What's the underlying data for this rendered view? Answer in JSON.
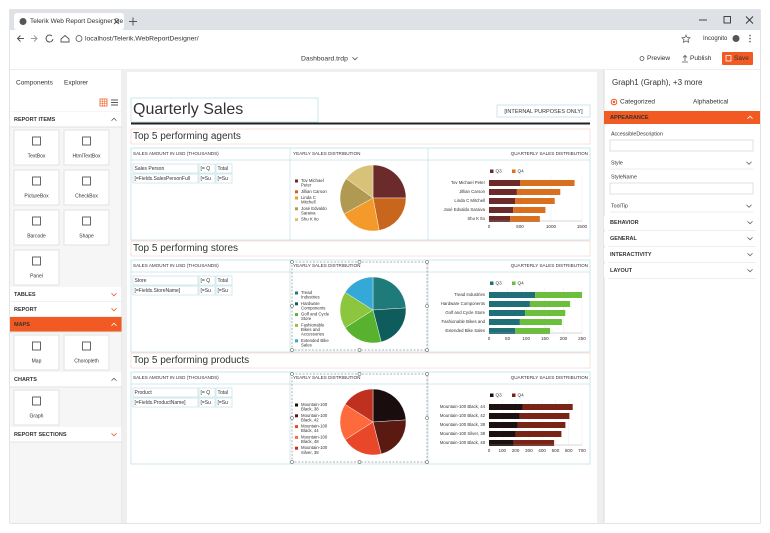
{
  "browser": {
    "tab_title": "Telerik Web Report Designer De",
    "url": "localhost/Telerik.WebReportDesigner/",
    "mode": "Incognito"
  },
  "toolbar": {
    "document": "Dashboard.trdp",
    "preview": "Preview",
    "publish": "Publish",
    "save": "Save"
  },
  "left_panel": {
    "tabs": [
      "Components",
      "Explorer"
    ],
    "groups": [
      {
        "title": "REPORT ITEMS",
        "items": [
          "TextBox",
          "HtmlTextBox",
          "PictureBox",
          "CheckBox",
          "Barcode",
          "Shape",
          "Panel"
        ]
      },
      {
        "title": "TABLES"
      },
      {
        "title": "REPORT"
      },
      {
        "title": "MAPS",
        "items": [
          "Map",
          "Choropleth"
        ]
      },
      {
        "title": "CHARTS",
        "items": [
          "Graph"
        ]
      },
      {
        "title": "REPORT SECTIONS"
      }
    ]
  },
  "report": {
    "title": "Quarterly Sales",
    "badge": "[INTERNAL PURPOSES ONLY]",
    "sections": [
      {
        "title": "Top 5 performing agents",
        "table_header": "SALES AMOUNT IN USD (THOUSANDS)",
        "pie_header": "YEARLY SALES DISTRIBUTION",
        "bar_header": "QUARTERLY SALES DISTRIBUTION",
        "columns": [
          "Sales Person",
          "[= Q",
          "Total"
        ],
        "row": [
          "[=Fields.SalesPersonFull",
          "[=Su",
          "[=Su"
        ],
        "pie": {
          "labels": [
            "Tov Michael Peter",
            "Jillian Carson",
            "Linda C Mitchell",
            "José Edvaldo Saraiva",
            "Shu K Ito"
          ],
          "values": [
            25,
            22,
            20,
            18,
            15
          ],
          "colors": [
            "#6b2b2b",
            "#c9661d",
            "#f39a2a",
            "#b09a52",
            "#d8c27a"
          ]
        },
        "bar": {
          "categories": [
            "Tov Michael Peter",
            "Jillian Carson",
            "Linda C Mitchell",
            "José Edvaldo Saraiva",
            "Shu K Ito"
          ],
          "series": [
            {
              "name": "Q3",
              "color": "#6b2b2b",
              "values": [
                500,
                450,
                420,
                390,
                340
              ]
            },
            {
              "name": "Q4",
              "color": "#d9701f",
              "values": [
                880,
                700,
                640,
                520,
                480
              ]
            }
          ],
          "xlim": [
            0,
            1500
          ],
          "xticks": [
            0,
            500,
            1000,
            1500
          ]
        }
      },
      {
        "title": "Top 5 performing stores",
        "table_header": "SALES AMOUNT IN USD (THOUSANDS)",
        "pie_header": "YEARLY SALES DISTRIBUTION",
        "bar_header": "QUARTERLY SALES DISTRIBUTION",
        "columns": [
          "Store",
          "[= Q",
          "Total"
        ],
        "row": [
          "[=Fields.StoreName]",
          "[=Su",
          "[=Su"
        ],
        "pie": {
          "labels": [
            "Tread Industries",
            "Hardware Components",
            "Golf and Cycle Store",
            "Fashionable Bikes and Accessories",
            "Extended Bike Sales"
          ],
          "values": [
            24,
            22,
            20,
            18,
            16
          ],
          "colors": [
            "#1f7a7a",
            "#0f5c5c",
            "#58b22f",
            "#8cc63f",
            "#34a8d6"
          ]
        },
        "bar": {
          "categories": [
            "Tread Industries",
            "Hardware Components",
            "Golf and Cycle Store",
            "Fashionable Bikes and",
            "Extended Bike Sales"
          ],
          "series": [
            {
              "name": "Q3",
              "color": "#1f6f78",
              "values": [
                124,
                110,
                97,
                83,
                70
              ]
            },
            {
              "name": "Q4",
              "color": "#6cbf3c",
              "values": [
                126,
                108,
                108,
                113,
                94
              ]
            }
          ],
          "xlim": [
            0,
            250
          ],
          "xticks": [
            0,
            50,
            100,
            150,
            200,
            250
          ]
        }
      },
      {
        "title": "Top 5 performing products",
        "table_header": "SALES AMOUNT IN USD (THOUSANDS)",
        "pie_header": "YEARLY SALES DISTRIBUTION",
        "bar_header": "QUARTERLY SALES DISTRIBUTION",
        "columns": [
          "Product",
          "[= Q",
          "Total"
        ],
        "row": [
          "[=Fields.ProductName]",
          "[=Su",
          "[=Su"
        ],
        "pie": {
          "labels": [
            "Mountain-100 Black, 38",
            "Mountain-100 Black, 42",
            "Mountain-100 Black, 44",
            "Mountain-100 Black, 48",
            "Mountain-100 Silver, 38"
          ],
          "values": [
            24,
            22,
            20,
            18,
            16
          ],
          "colors": [
            "#1a0d0d",
            "#5a1a12",
            "#e8472a",
            "#ff6a3d",
            "#c0301e"
          ]
        },
        "bar": {
          "categories": [
            "Mountain-100 Black, 44",
            "Mountain-100 Black, 42",
            "Mountain-100 Black, 38",
            "Mountain-100 Silver, 38",
            "Mountain-100 Black, 48"
          ],
          "series": [
            {
              "name": "Q3",
              "color": "#1c1010",
              "values": [
                255,
                230,
                215,
                200,
                185
              ]
            },
            {
              "name": "Q4",
              "color": "#7a2418",
              "values": [
                375,
                375,
                360,
                345,
                305
              ]
            }
          ],
          "xlim": [
            0,
            700
          ],
          "xticks": [
            0,
            100,
            200,
            300,
            400,
            500,
            600,
            700
          ]
        }
      }
    ]
  },
  "right_panel": {
    "title": "Graph1 (Graph), +3 more",
    "views": [
      "Categorized",
      "Alphabetical"
    ],
    "categories": [
      {
        "title": "APPEARANCE",
        "properties": [
          "AccessibleDescription",
          "Style",
          "StyleName",
          "ToolTip"
        ]
      },
      {
        "title": "BEHAVIOR"
      },
      {
        "title": "GENERAL"
      },
      {
        "title": "INTERACTIVITY"
      },
      {
        "title": "LAYOUT"
      }
    ]
  }
}
